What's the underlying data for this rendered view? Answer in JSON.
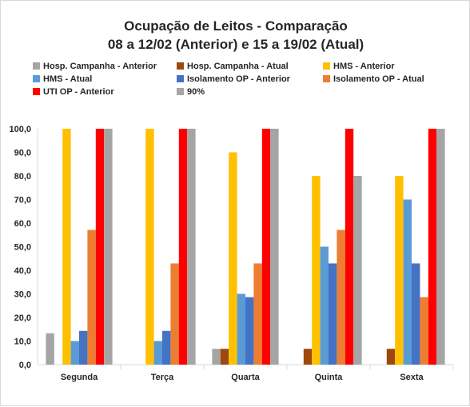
{
  "chart_data": {
    "type": "bar",
    "title": "Ocupação de Leitos - Comparação",
    "subtitle": "08 a 12/02 (Anterior) e 15 a 19/02 (Atual)",
    "categories": [
      "Segunda",
      "Terça",
      "Quarta",
      "Quinta",
      "Sexta"
    ],
    "ylim": [
      0,
      100
    ],
    "yticks": [
      "0,0",
      "10,0",
      "20,0",
      "30,0",
      "40,0",
      "50,0",
      "60,0",
      "70,0",
      "80,0",
      "90,0",
      "100,0"
    ],
    "grid": false,
    "legend_position": "top",
    "series": [
      {
        "name": "Hosp. Campanha - Anterior",
        "color": "#a5a5a5",
        "values": [
          13.3,
          0,
          6.7,
          0,
          0
        ]
      },
      {
        "name": "Hosp. Campanha - Atual",
        "color": "#9e480e",
        "values": [
          0,
          0,
          6.7,
          6.7,
          6.7
        ]
      },
      {
        "name": "HMS - Anterior",
        "color": "#ffc000",
        "values": [
          100,
          100,
          90,
          80,
          80
        ]
      },
      {
        "name": "HMS - Atual",
        "color": "#5b9bd5",
        "values": [
          10,
          10,
          30,
          50,
          70
        ]
      },
      {
        "name": "Isolamento OP - Anterior",
        "color": "#4472c4",
        "values": [
          14.3,
          14.3,
          28.6,
          42.9,
          42.9
        ]
      },
      {
        "name": "Isolamento OP - Atual",
        "color": "#ed7d31",
        "values": [
          57.1,
          42.9,
          42.9,
          57.1,
          28.6
        ]
      },
      {
        "name": "UTI OP - Anterior",
        "color": "#ff0000",
        "values": [
          100,
          100,
          100,
          100,
          100
        ]
      },
      {
        "name": "90%",
        "color": "#a5a5a5",
        "values": [
          100,
          100,
          100,
          80,
          100
        ]
      }
    ]
  }
}
